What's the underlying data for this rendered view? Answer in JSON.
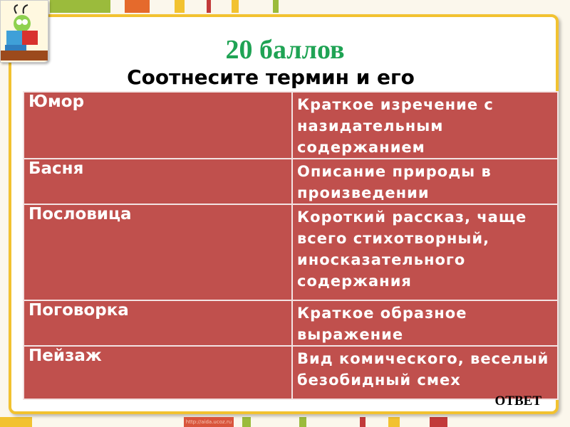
{
  "title": "20 баллов",
  "subtitle": "Соотнесите термин и его",
  "table": {
    "rows": [
      {
        "term": "Юмор",
        "definition": "Краткое изречение с назидательным содержанием"
      },
      {
        "term": "Басня",
        "definition": "Описание природы в произведении"
      },
      {
        "term": "Пословица",
        "definition": "Короткий рассказ, чаще всего стихотворный, иносказательного содержания"
      },
      {
        "term": "Поговорка",
        "definition": "Краткое образное выражение"
      },
      {
        "term": "Пейзаж",
        "definition": "Вид комического, веселый безобидный смех"
      }
    ]
  },
  "answer_label": "ОТВЕТ",
  "watermark": "http://aida.ucoz.ru",
  "colors": {
    "title": "#1fa354",
    "cell": "#c0504d",
    "frame": "#f2c230"
  }
}
